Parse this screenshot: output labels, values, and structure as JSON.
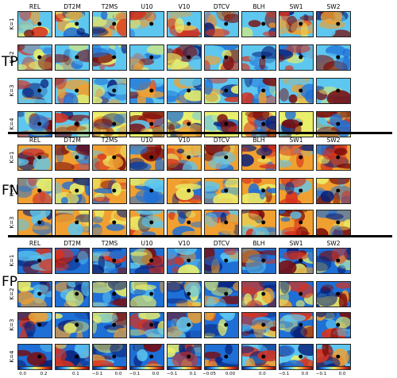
{
  "columns": [
    "REL",
    "DT2M",
    "T2MS",
    "U10",
    "V10",
    "DTCV",
    "BLH",
    "SW1",
    "SW2"
  ],
  "groups": [
    {
      "name": "TP",
      "rows": [
        "K=1",
        "K=2",
        "K=3",
        "K=4"
      ]
    },
    {
      "name": "FN",
      "rows": [
        "K=1",
        "K=2",
        "K=3"
      ]
    },
    {
      "name": "FP",
      "rows": [
        "K=1",
        "K=2",
        "K=3",
        "K=4"
      ]
    }
  ],
  "colorbar_ticks": [
    [
      "0.0",
      "0.2"
    ],
    [
      "0.1"
    ],
    [
      "−0.1",
      "0.0"
    ],
    [
      "−0.1",
      "0.0"
    ],
    [
      "−0.1",
      "0.1"
    ],
    [
      "−0.05",
      "0.00"
    ],
    [
      "0.0"
    ],
    [
      "−0.1",
      "0.0"
    ],
    [
      "−0.1",
      "0.0"
    ]
  ],
  "colors": {
    "background": "#ffffff",
    "separator": "#000000",
    "colormap": [
      "#08207a",
      "#1e6fd6",
      "#5ec7f0",
      "#e9ef6a",
      "#f0a030",
      "#d6321e",
      "#7a0b0b"
    ]
  }
}
